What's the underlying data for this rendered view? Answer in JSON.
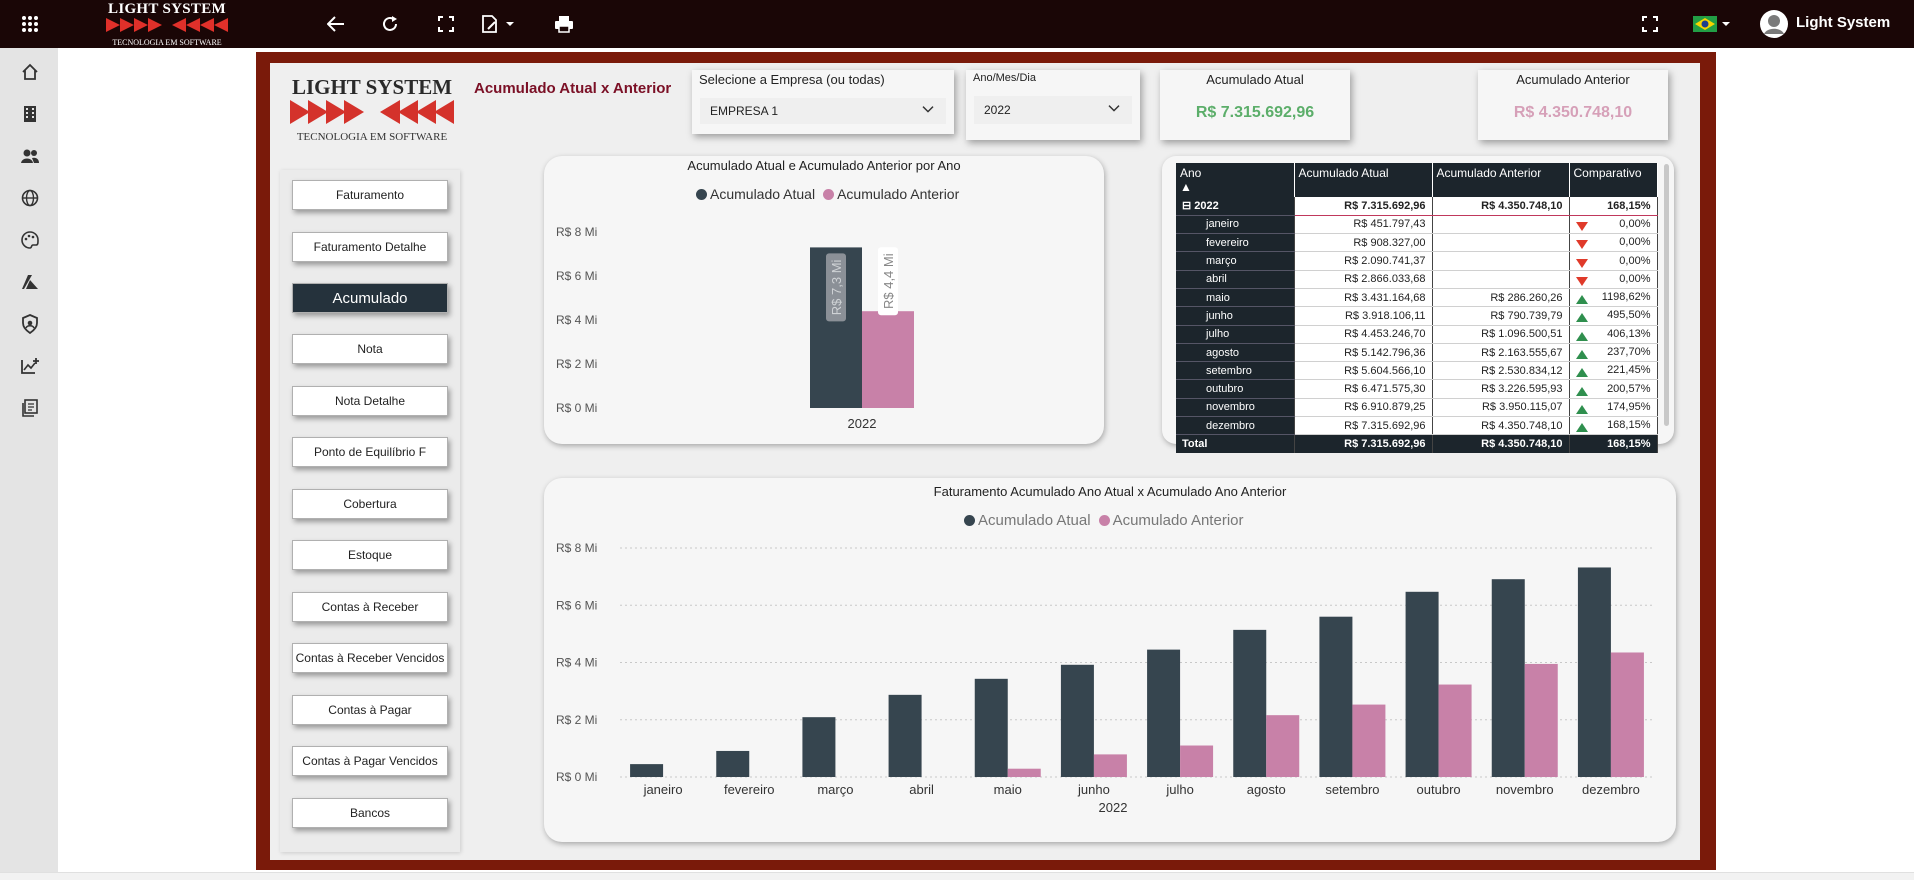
{
  "topbar": {
    "logo_title": "LIGHT SYSTEM",
    "logo_subtitle": "TECNOLOGIA EM SOFTWARE",
    "icons": [
      "apps-grid-icon",
      "back-arrow-icon",
      "refresh-icon",
      "fullscreen-icon",
      "edit-document-icon",
      "print-icon",
      "fullscreen-icon",
      "brazil-flag-icon",
      "avatar-icon"
    ],
    "user_name": "Light System"
  },
  "leftnav": {
    "icons": [
      "home-icon",
      "building-icon",
      "users-icon",
      "globe-icon",
      "palette-icon",
      "azure-icon",
      "shield-icon",
      "chart-add-icon",
      "reports-icon"
    ]
  },
  "report": {
    "logo_title": "LIGHT SYSTEM",
    "logo_subtitle": "TECNOLOGIA EM SOFTWARE",
    "title": "Acumulado Atual x Anterior",
    "company_slicer": {
      "label": "Selecione a Empresa (ou todas)",
      "value": "EMPRESA 1"
    },
    "date_slicer": {
      "label": "Ano/Mes/Dia",
      "value": "2022"
    },
    "card_current": {
      "title": "Acumulado Atual",
      "value": "R$ 7.315.692,96",
      "color": "#5cae6a"
    },
    "card_previous": {
      "title": "Acumulado Anterior",
      "value": "R$ 4.350.748,10",
      "color": "#d6a0b8"
    },
    "nav_buttons": [
      {
        "label": "Faturamento",
        "active": false
      },
      {
        "label": "Faturamento Detalhe",
        "active": false
      },
      {
        "label": "Acumulado",
        "active": true
      },
      {
        "label": "Nota",
        "active": false
      },
      {
        "label": "Nota Detalhe",
        "active": false
      },
      {
        "label": "Ponto de Equilíbrio F",
        "active": false
      },
      {
        "label": "Cobertura",
        "active": false
      },
      {
        "label": "Estoque",
        "active": false
      },
      {
        "label": "Contas à Receber",
        "active": false
      },
      {
        "label": "Contas à Receber Vencidos",
        "active": false
      },
      {
        "label": "Contas à Pagar",
        "active": false
      },
      {
        "label": "Contas à Pagar Vencidos",
        "active": false
      },
      {
        "label": "Bancos",
        "active": false
      }
    ]
  },
  "matrix": {
    "headers": [
      "Ano",
      "Acumulado Atual",
      "Acumulado Anterior",
      "Comparativo"
    ],
    "year_row": {
      "label": "2022",
      "atual": "R$ 7.315.692,96",
      "anterior": "R$ 4.350.748,10",
      "comparativo": "168,15%"
    },
    "rows": [
      {
        "label": "janeiro",
        "atual": "R$ 451.797,43",
        "anterior": "",
        "comparativo": "0,00%",
        "trend": "down"
      },
      {
        "label": "fevereiro",
        "atual": "R$ 908.327,00",
        "anterior": "",
        "comparativo": "0,00%",
        "trend": "down"
      },
      {
        "label": "março",
        "atual": "R$ 2.090.741,37",
        "anterior": "",
        "comparativo": "0,00%",
        "trend": "down"
      },
      {
        "label": "abril",
        "atual": "R$ 2.866.033,68",
        "anterior": "",
        "comparativo": "0,00%",
        "trend": "down"
      },
      {
        "label": "maio",
        "atual": "R$ 3.431.164,68",
        "anterior": "R$ 286.260,26",
        "comparativo": "1198,62%",
        "trend": "up"
      },
      {
        "label": "junho",
        "atual": "R$ 3.918.106,11",
        "anterior": "R$ 790.739,79",
        "comparativo": "495,50%",
        "trend": "up"
      },
      {
        "label": "julho",
        "atual": "R$ 4.453.246,70",
        "anterior": "R$ 1.096.500,51",
        "comparativo": "406,13%",
        "trend": "up"
      },
      {
        "label": "agosto",
        "atual": "R$ 5.142.796,36",
        "anterior": "R$ 2.163.555,67",
        "comparativo": "237,70%",
        "trend": "up"
      },
      {
        "label": "setembro",
        "atual": "R$ 5.604.566,10",
        "anterior": "R$ 2.530.834,12",
        "comparativo": "221,45%",
        "trend": "up"
      },
      {
        "label": "outubro",
        "atual": "R$ 6.471.575,30",
        "anterior": "R$ 3.226.595,93",
        "comparativo": "200,57%",
        "trend": "up"
      },
      {
        "label": "novembro",
        "atual": "R$ 6.910.879,25",
        "anterior": "R$ 3.950.115,07",
        "comparativo": "174,95%",
        "trend": "up"
      },
      {
        "label": "dezembro",
        "atual": "R$ 7.315.692,96",
        "anterior": "R$ 4.350.748,10",
        "comparativo": "168,15%",
        "trend": "up"
      }
    ],
    "total_row": {
      "label": "Total",
      "atual": "R$ 7.315.692,96",
      "anterior": "R$ 4.350.748,10",
      "comparativo": "168,15%"
    }
  },
  "chart_data": [
    {
      "type": "bar",
      "title": "Acumulado Atual e Acumulado Anterior por Ano",
      "categories": [
        "2022"
      ],
      "series": [
        {
          "name": "Acumulado Atual",
          "values": [
            7.3
          ],
          "data_labels": [
            "R$ 7,3 Mi"
          ],
          "color": "#36454f"
        },
        {
          "name": "Acumulado Anterior",
          "values": [
            4.4
          ],
          "data_labels": [
            "R$ 4,4 Mi"
          ],
          "color": "#c881a8"
        }
      ],
      "y_ticks": [
        "R$ 0 Mi",
        "R$ 2 Mi",
        "R$ 4 Mi",
        "R$ 6 Mi",
        "R$ 8 Mi"
      ],
      "ylim": [
        0,
        8
      ],
      "legend": "top-center",
      "grid": false
    },
    {
      "type": "bar",
      "title": "Faturamento Acumulado Ano Atual x Acumulado Ano Anterior",
      "xlabel": "2022",
      "categories": [
        "janeiro",
        "fevereiro",
        "março",
        "abril",
        "maio",
        "junho",
        "julho",
        "agosto",
        "setembro",
        "outubro",
        "novembro",
        "dezembro"
      ],
      "series": [
        {
          "name": "Acumulado Atual",
          "values": [
            0.45,
            0.91,
            2.09,
            2.87,
            3.43,
            3.92,
            4.45,
            5.14,
            5.6,
            6.47,
            6.91,
            7.32
          ],
          "color": "#36454f"
        },
        {
          "name": "Acumulado Anterior",
          "values": [
            0,
            0,
            0,
            0,
            0.29,
            0.79,
            1.1,
            2.16,
            2.53,
            3.23,
            3.95,
            4.35
          ],
          "color": "#c881a8"
        }
      ],
      "y_ticks": [
        "R$ 0 Mi",
        "R$ 2 Mi",
        "R$ 4 Mi",
        "R$ 6 Mi",
        "R$ 8 Mi"
      ],
      "ylim": [
        0,
        8
      ],
      "legend": "top-center",
      "grid": true
    }
  ]
}
